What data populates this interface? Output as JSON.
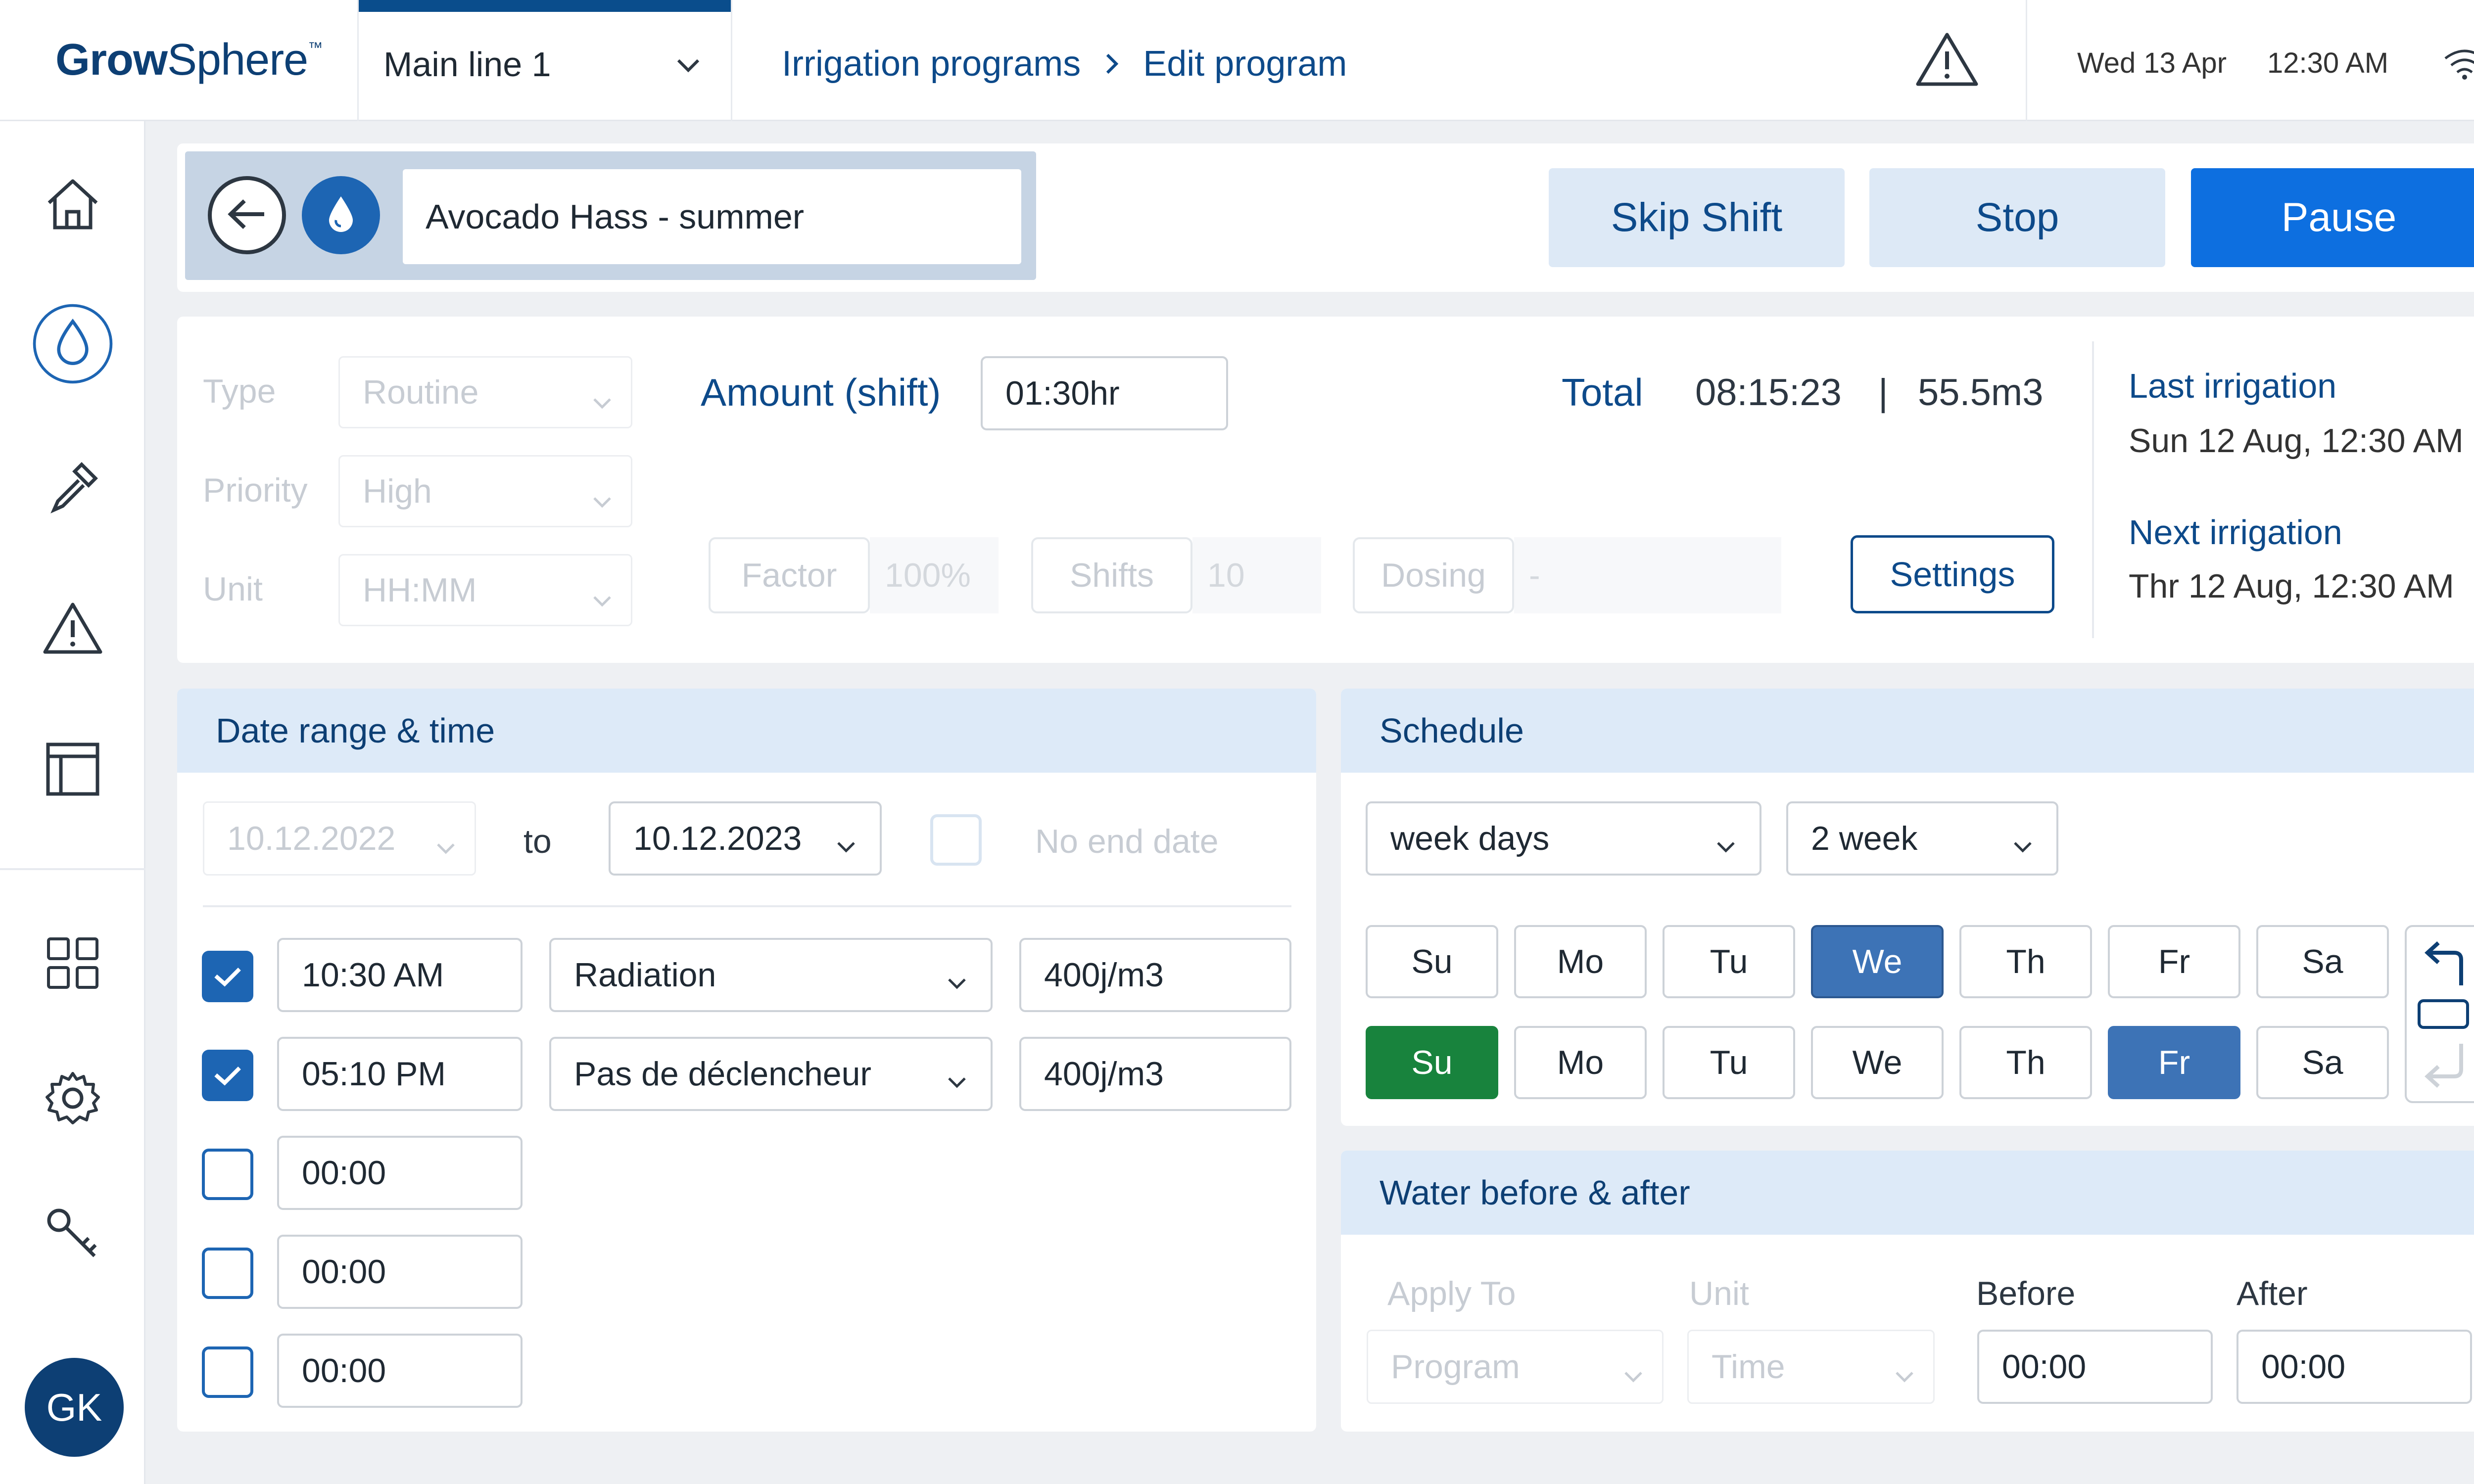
{
  "app": {
    "logo_bold": "Grow",
    "logo_light": "Sphere",
    "logo_tm": "™"
  },
  "topbar": {
    "line_select": "Main line 1",
    "breadcrumb": [
      "Irrigation programs",
      "Edit program"
    ],
    "date": "Wed 13 Apr",
    "time": "12:30 AM",
    "icons": [
      "warning-icon",
      "wifi-icon",
      "chevron-down-icon",
      "chevron-right-icon"
    ]
  },
  "sidebar": {
    "items": [
      "home-icon",
      "irrigation-drop-icon",
      "dropper-icon",
      "alert-icon",
      "table-icon",
      "grid-icon",
      "settings-gear-icon",
      "key-icon"
    ],
    "active": "irrigation-drop-icon",
    "avatar": "GK"
  },
  "program": {
    "name": "Avocado Hass - summer",
    "buttons": {
      "skip": "Skip Shift",
      "stop": "Stop",
      "pause": "Pause"
    }
  },
  "program_settings": {
    "type_label": "Type",
    "type_value": "Routine",
    "priority_label": "Priority",
    "priority_value": "High",
    "unit_label": "Unit",
    "unit_value": "HH:MM",
    "amount_label": "Amount (shift)",
    "amount_value": "01:30hr",
    "total_label": "Total",
    "total_time": "08:15:23",
    "total_sep": "|",
    "total_volume": "55.5m3",
    "factor_label": "Factor",
    "factor_value": "100%",
    "shifts_label": "Shifts",
    "shifts_value": "10",
    "dosing_label": "Dosing",
    "dosing_value": "-",
    "settings_label": "Settings",
    "last_irrigation_label": "Last irrigation",
    "last_irrigation_value": "Sun 12 Aug, 12:30 AM",
    "next_irrigation_label": "Next irrigation",
    "next_irrigation_value": "Thr 12 Aug, 12:30 AM"
  },
  "date_range": {
    "title": "Date range & time",
    "start": "10.12.2022",
    "to_label": "to",
    "end": "10.12.2023",
    "no_end_date_label": "No end date",
    "no_end_date_checked": false,
    "rows": [
      {
        "checked": true,
        "time": "10:30 AM",
        "trigger": "Radiation",
        "value": "400j/m3"
      },
      {
        "checked": true,
        "time": "05:10 PM",
        "trigger": "Pas de déclencheur",
        "value": "400j/m3"
      },
      {
        "checked": false,
        "time": "00:00"
      },
      {
        "checked": false,
        "time": "00:00"
      },
      {
        "checked": false,
        "time": "00:00"
      }
    ]
  },
  "schedule": {
    "title": "Schedule",
    "mode": "week days",
    "period": "2 week",
    "week1": [
      "Su",
      "Mo",
      "Tu",
      "We",
      "Th",
      "Fr",
      "Sa"
    ],
    "week2": [
      "Su",
      "Mo",
      "Tu",
      "We",
      "Th",
      "Fr",
      "Sa"
    ],
    "week1_selected": [
      "We"
    ],
    "week2_selected": [
      "Su",
      "Fr"
    ],
    "colors": {
      "selected": "#3d73b6",
      "sunday_selected": "#18833d"
    }
  },
  "water_before_after": {
    "title": "Water before & after",
    "apply_to_label": "Apply To",
    "apply_to_value": "Program",
    "unit_label": "Unit",
    "unit_value": "Time",
    "before_label": "Before",
    "before_value": "00:00",
    "after_label": "After",
    "after_value": "00:00"
  },
  "colors": {
    "brand": "#0d3f74",
    "accent": "#0d6fe0",
    "header_bg": "#ddeaf8"
  }
}
